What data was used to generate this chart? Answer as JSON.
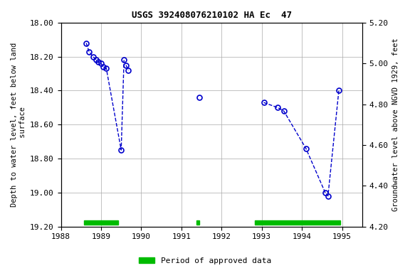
{
  "title": "USGS 392408076210102 HA Ec  47",
  "ylabel_left": "Depth to water level, feet below land\n surface",
  "ylabel_right": "Groundwater level above NGVD 1929, feet",
  "ylim_left": [
    19.2,
    18.0
  ],
  "ylim_right": [
    4.2,
    5.2
  ],
  "xlim": [
    1988,
    1995.5
  ],
  "segments": [
    {
      "x": [
        1988.63,
        1988.7,
        1988.8,
        1988.88,
        1988.92,
        1989.0,
        1989.05,
        1989.13,
        1989.5,
        1989.57
      ],
      "y": [
        18.12,
        18.17,
        18.2,
        18.22,
        18.23,
        18.24,
        18.26,
        18.27,
        18.75,
        18.22
      ]
    },
    {
      "x": [
        1989.62,
        1989.68
      ],
      "y": [
        18.25,
        18.28
      ]
    },
    {
      "x": [
        1991.45
      ],
      "y": [
        18.44
      ]
    },
    {
      "x": [
        1993.05,
        1993.4,
        1993.55,
        1994.1,
        1994.58,
        1994.65,
        1994.92
      ],
      "y": [
        18.47,
        18.5,
        18.52,
        18.74,
        19.0,
        19.02,
        18.4
      ]
    }
  ],
  "line_color": "#0000cc",
  "marker_color": "#0000cc",
  "background_color": "#ffffff",
  "grid_color": "#aaaaaa",
  "approved_bars": [
    {
      "x_start": 1988.58,
      "x_end": 1989.42,
      "y_center": 19.175
    },
    {
      "x_start": 1991.38,
      "x_end": 1991.44,
      "y_center": 19.175
    },
    {
      "x_start": 1992.83,
      "x_end": 1994.95,
      "y_center": 19.175
    }
  ],
  "approved_color": "#00bb00",
  "approved_bar_height": 0.025,
  "legend_label": "Period of approved data",
  "xticks": [
    1988,
    1989,
    1990,
    1991,
    1992,
    1993,
    1994,
    1995
  ],
  "yticks_left": [
    18.0,
    18.2,
    18.4,
    18.6,
    18.8,
    19.0,
    19.2
  ],
  "yticks_right": [
    5.2,
    5.0,
    4.8,
    4.6,
    4.4,
    4.2
  ]
}
